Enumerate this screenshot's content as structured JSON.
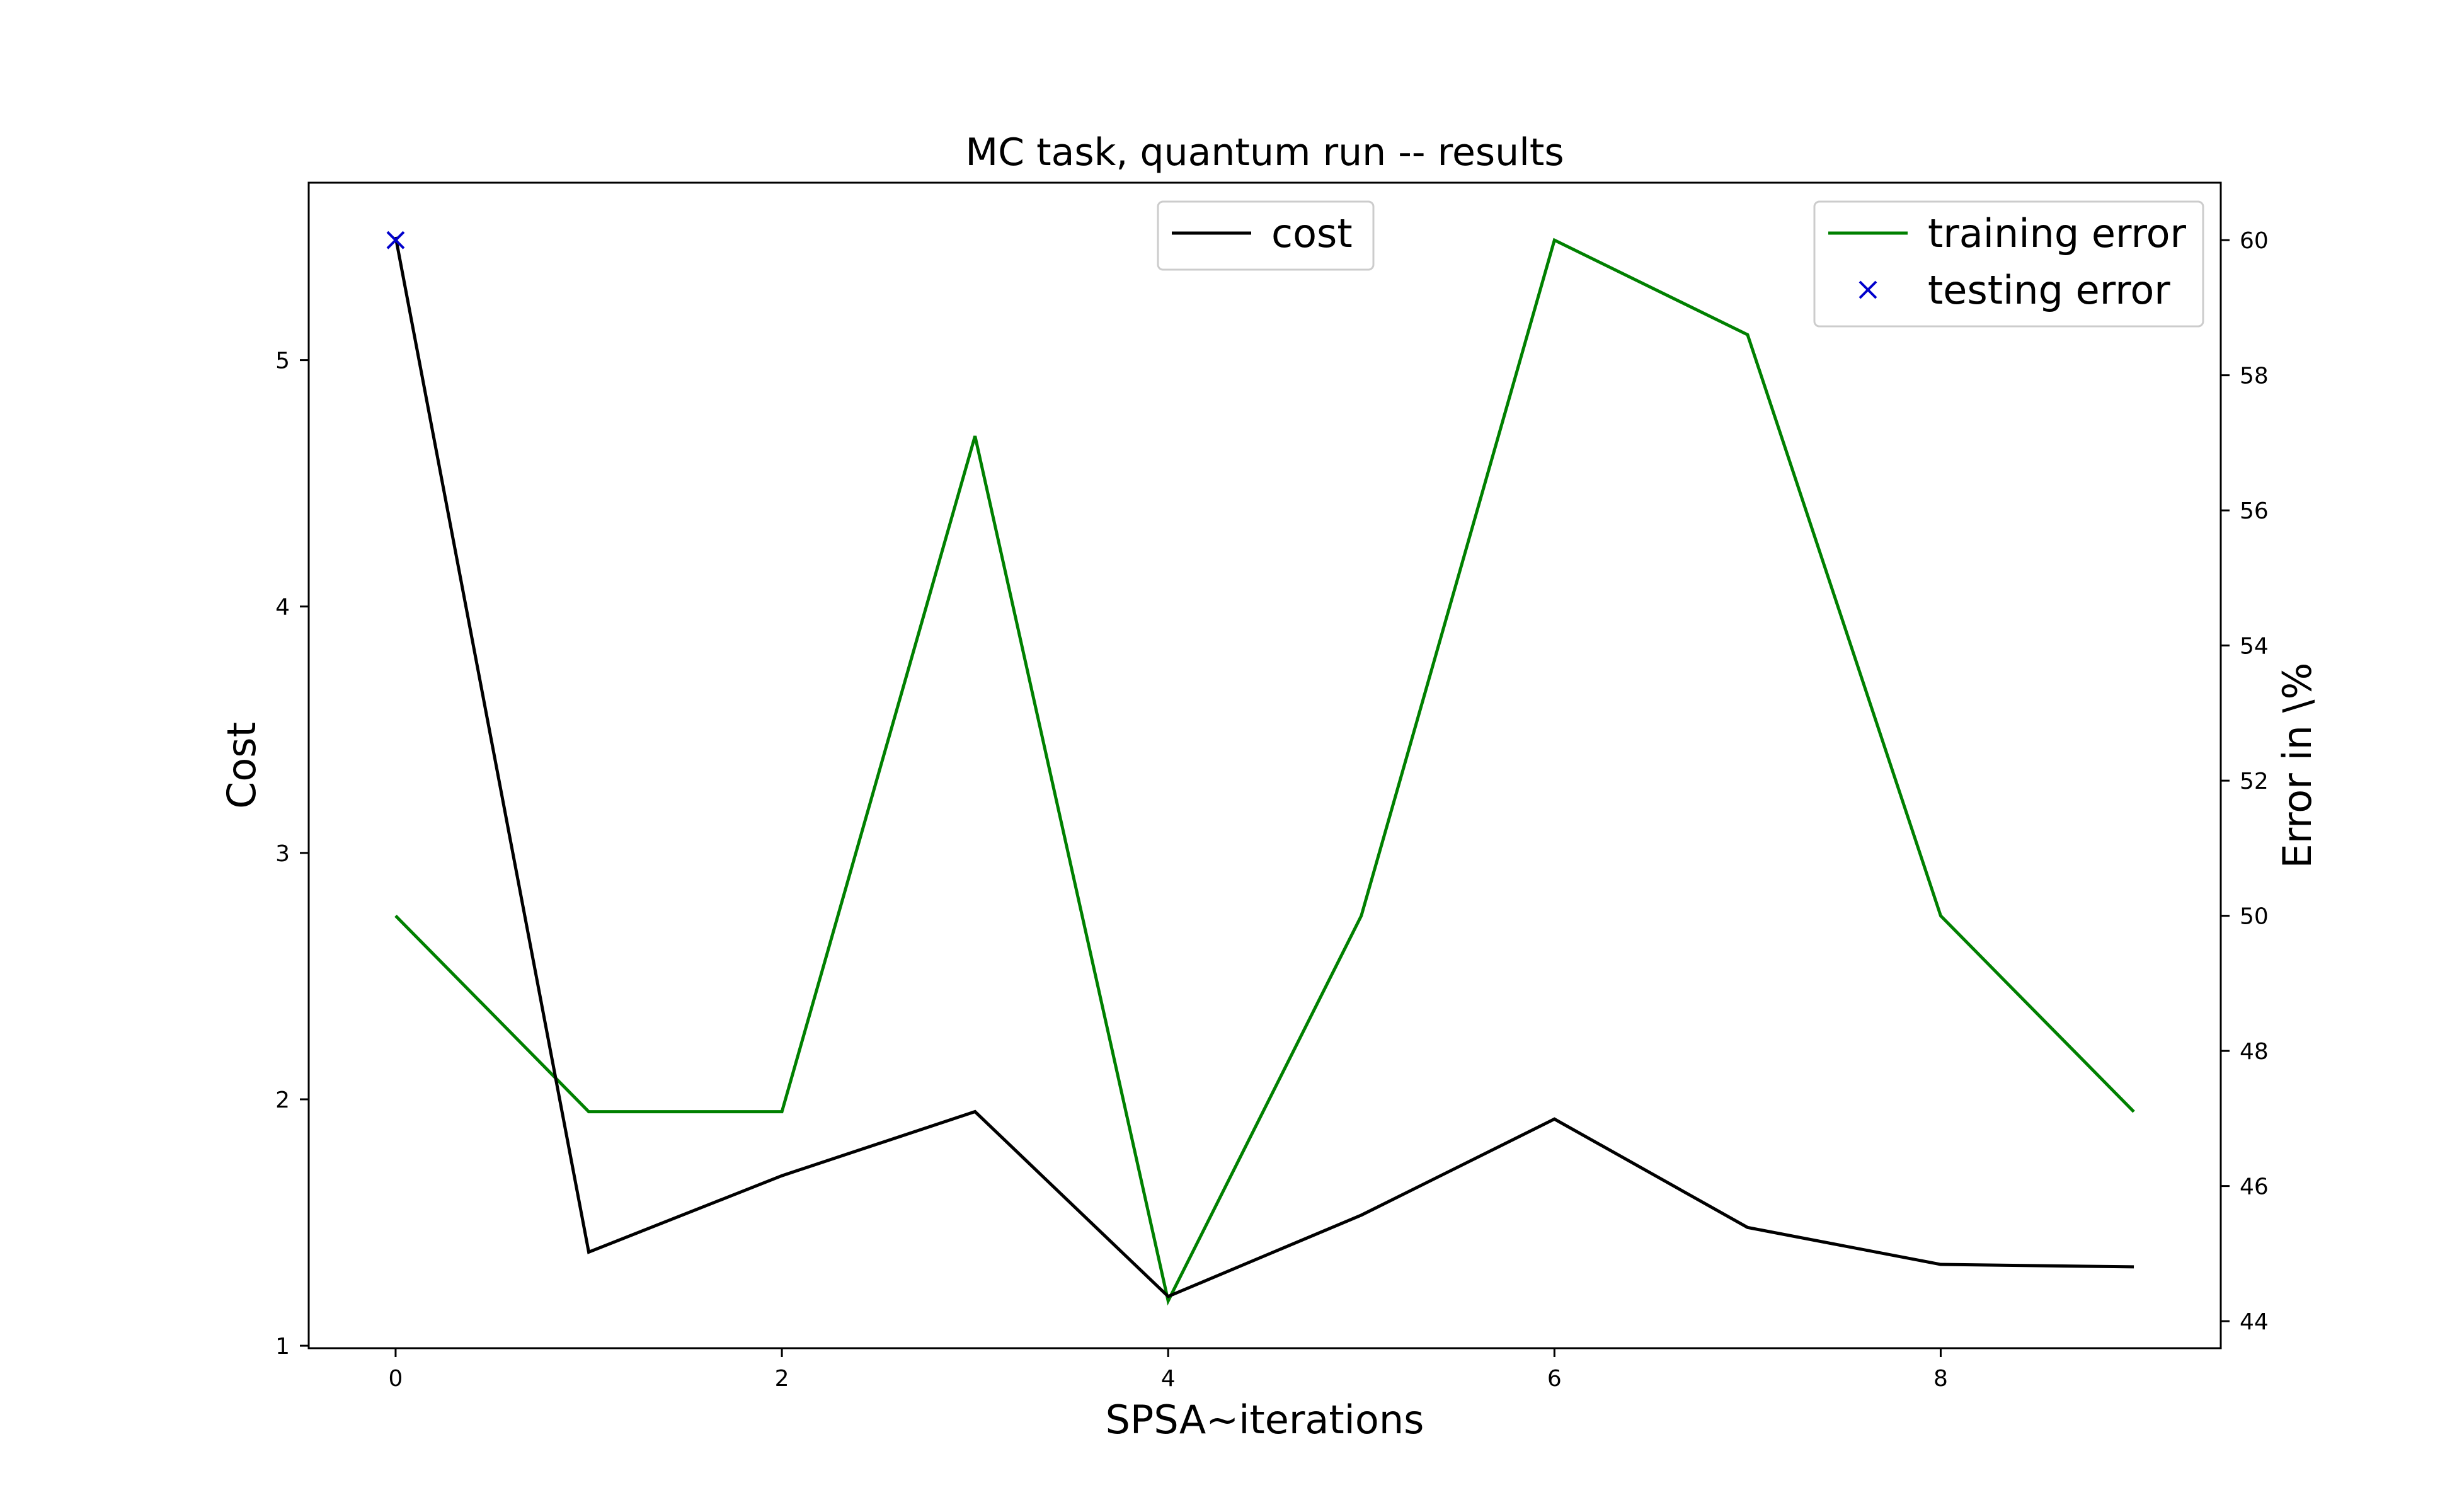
{
  "chart_data": {
    "type": "line",
    "title": "MC task, quantum run -- results",
    "xlabel": "SPSA~iterations",
    "ylabel_left": "Cost",
    "ylabel_right": "Error in \\%",
    "x": [
      0,
      1,
      2,
      3,
      4,
      5,
      6,
      7,
      8,
      9
    ],
    "x_ticks": [
      "0",
      "2",
      "4",
      "6",
      "8"
    ],
    "xlim": [
      -0.45,
      9.45
    ],
    "ylim_left": [
      0.99,
      5.72
    ],
    "y_ticks_left": [
      "1",
      "2",
      "3",
      "4",
      "5"
    ],
    "ylim_right": [
      43.6,
      60.85
    ],
    "y_ticks_right": [
      "44",
      "46",
      "48",
      "50",
      "52",
      "54",
      "56",
      "58",
      "60"
    ],
    "series": [
      {
        "name": "cost",
        "axis": "left",
        "color": "#000000",
        "style": "line",
        "values": [
          5.5,
          1.38,
          1.69,
          1.95,
          1.2,
          1.53,
          1.92,
          1.48,
          1.33,
          1.32
        ]
      },
      {
        "name": "training error",
        "axis": "right",
        "color": "#008000",
        "style": "line",
        "values": [
          50.0,
          47.1,
          47.1,
          57.1,
          44.3,
          50.0,
          60.0,
          58.6,
          50.0,
          47.1
        ]
      },
      {
        "name": "testing error",
        "axis": "right",
        "color": "#0000cc",
        "style": "marker-x",
        "x": [
          0
        ],
        "values": [
          60.0
        ]
      }
    ],
    "legends": [
      {
        "placement": "top-center",
        "entries": [
          "cost"
        ]
      },
      {
        "placement": "top-right",
        "entries": [
          "training error",
          "testing error"
        ]
      }
    ],
    "grid": false
  }
}
